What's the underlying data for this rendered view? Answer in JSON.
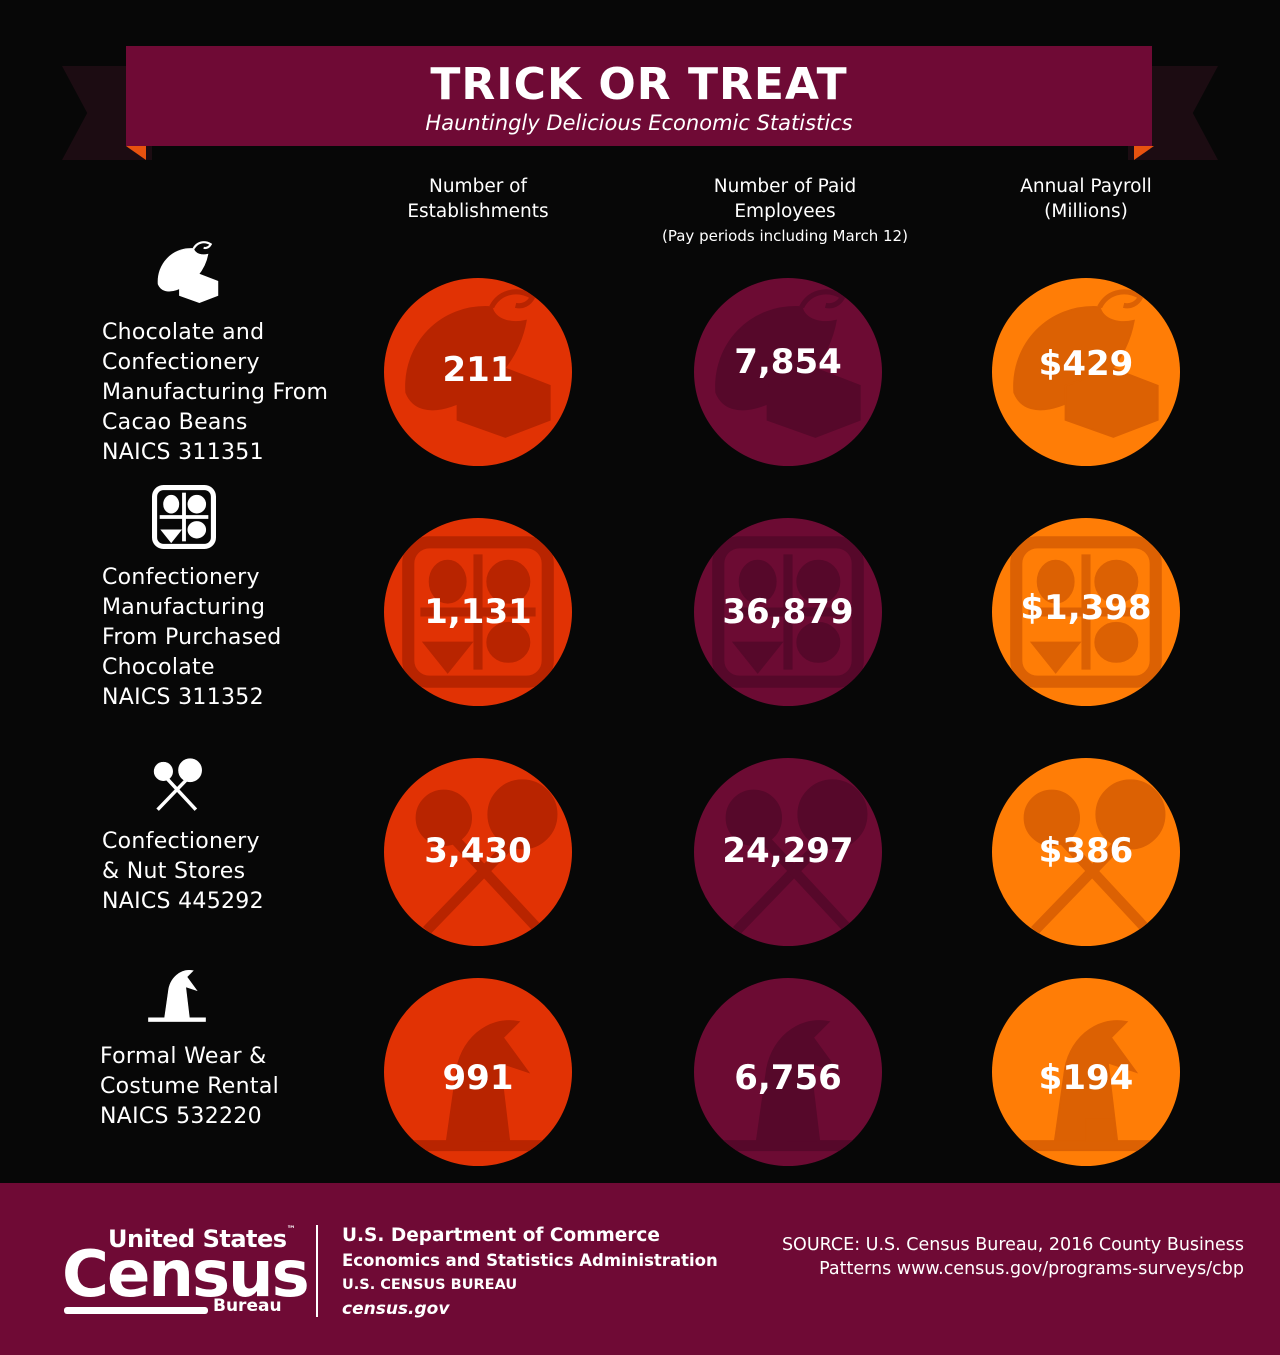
{
  "header": {
    "title": "TRICK OR TREAT",
    "subtitle": "Hauntingly Delicious Economic Statistics"
  },
  "columns": [
    {
      "lines": [
        "Number of",
        "Establishments"
      ],
      "sub": ""
    },
    {
      "lines": [
        "Number of Paid",
        "Employees"
      ],
      "sub": "(Pay periods including March 12)"
    },
    {
      "lines": [
        "Annual Payroll",
        "(Millions)"
      ],
      "sub": ""
    }
  ],
  "rows": [
    {
      "icon": "cacao-chocolate-icon",
      "label_lines": [
        "Chocolate and",
        "Confectionery",
        "Manufacturing From",
        "Cacao Beans",
        "NAICS 311351"
      ],
      "values": [
        "211",
        "7,854",
        "$429"
      ]
    },
    {
      "icon": "candy-box-icon",
      "label_lines": [
        "Confectionery",
        "Manufacturing",
        "From Purchased",
        "Chocolate",
        "NAICS 311352"
      ],
      "values": [
        "1,131",
        "36,879",
        "$1,398"
      ]
    },
    {
      "icon": "lollipops-icon",
      "label_lines": [
        "Confectionery",
        "& Nut Stores",
        "NAICS 445292"
      ],
      "values": [
        "3,430",
        "24,297",
        "$386"
      ]
    },
    {
      "icon": "witch-hat-icon",
      "label_lines": [
        "Formal Wear &",
        "Costume Rental",
        "NAICS 532220"
      ],
      "values": [
        "991",
        "6,756",
        "$194"
      ]
    }
  ],
  "colors": {
    "banner": "#6f0a35",
    "red": "#e13204",
    "maroon": "#6c0b33",
    "orange": "#ff7d06"
  },
  "footer": {
    "logo_top": "United States",
    "logo_tm": "™",
    "logo_main": "Census",
    "logo_bottom": "Bureau",
    "dept_line1": "U.S. Department of Commerce",
    "dept_line2": "Economics and Statistics Administration",
    "dept_line3": "U.S. CENSUS BUREAU",
    "dept_line4": "census.gov",
    "source_line1": "SOURCE: U.S. Census Bureau, 2016 County Business",
    "source_line2": "Patterns www.census.gov/programs-surveys/cbp"
  }
}
